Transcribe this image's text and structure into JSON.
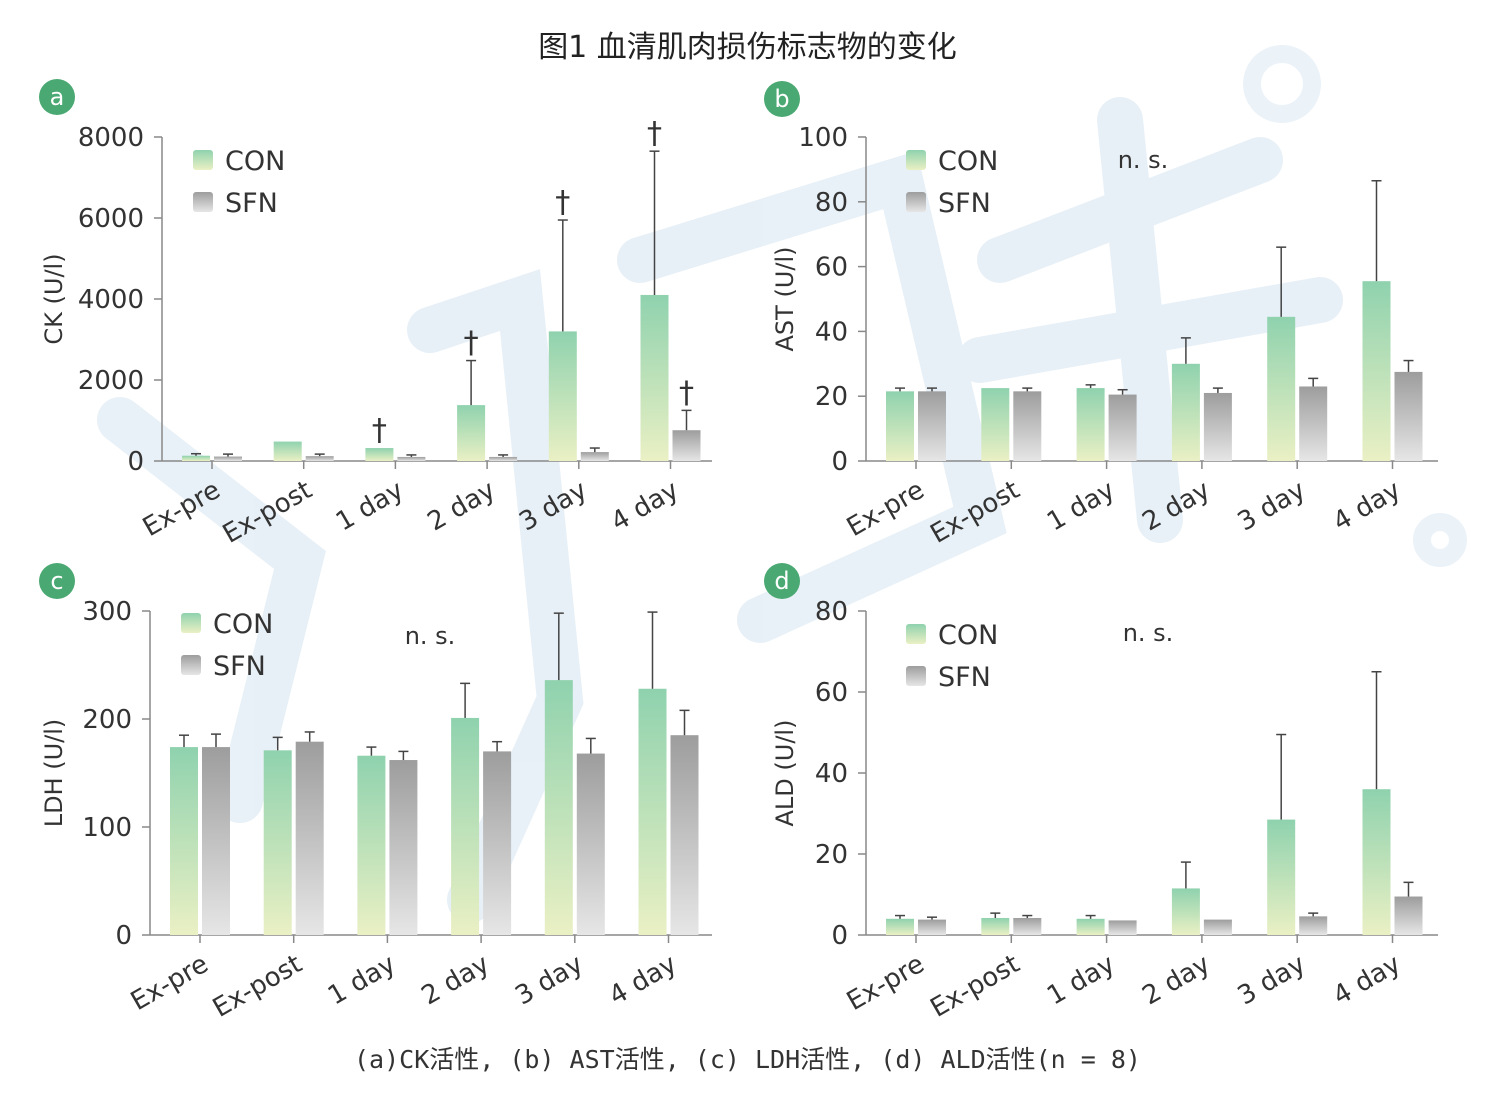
{
  "figure": {
    "title": "图1 血清肌肉损伤标志物的变化",
    "caption": "(a)CK活性, (b) AST活性, (c) LDH活性, (d) ALD活性(n = 8)"
  },
  "colors": {
    "con_top": "#8fd2ae",
    "con_bottom": "#eaf0c4",
    "sfn_top": "#9d9d9d",
    "sfn_bottom": "#e6e6e6",
    "badge": "#4aa872",
    "axis": "#888888",
    "errorbar": "#444444",
    "watermark": "#cfe0ee"
  },
  "chart_data": [
    {
      "type": "bar",
      "panel_label": "a",
      "categories": [
        "Ex-pre",
        "Ex-post",
        "1 day",
        "2 day",
        "3 day",
        "4 day"
      ],
      "ylabel": "CK (U/l)",
      "ylim": [
        0,
        8000
      ],
      "yticks": [
        0,
        2000,
        4000,
        6000,
        8000
      ],
      "legend": "top-left",
      "series": [
        {
          "name": "CON",
          "values": [
            130,
            480,
            320,
            1380,
            3200,
            4100
          ],
          "errors": [
            50,
            0,
            0,
            1100,
            2750,
            3550
          ]
        },
        {
          "name": "SFN",
          "values": [
            110,
            120,
            100,
            100,
            220,
            760
          ],
          "errors": [
            60,
            50,
            50,
            50,
            100,
            490
          ]
        }
      ],
      "markers": [
        {
          "category": "1 day",
          "series": "CON",
          "text": "†"
        },
        {
          "category": "2 day",
          "series": "CON",
          "text": "†"
        },
        {
          "category": "3 day",
          "series": "CON",
          "text": "†"
        },
        {
          "category": "4 day",
          "series": "CON",
          "text": "†"
        },
        {
          "category": "4 day",
          "series": "SFN",
          "text": "†"
        }
      ]
    },
    {
      "type": "bar",
      "panel_label": "b",
      "categories": [
        "Ex-pre",
        "Ex-post",
        "1 day",
        "2 day",
        "3 day",
        "4 day"
      ],
      "ylabel": "AST (U/l)",
      "ylim": [
        0,
        100
      ],
      "yticks": [
        0,
        20,
        40,
        60,
        80,
        100
      ],
      "legend": "top-left",
      "annotation": "n. s.",
      "series": [
        {
          "name": "CON",
          "values": [
            21.5,
            22.5,
            22.5,
            30,
            44.5,
            55.5
          ],
          "errors": [
            1,
            0,
            1,
            8,
            21.5,
            31
          ]
        },
        {
          "name": "SFN",
          "values": [
            21.5,
            21.5,
            20.5,
            21,
            23,
            27.5
          ],
          "errors": [
            1,
            1,
            1.5,
            1.5,
            2.5,
            3.5
          ]
        }
      ]
    },
    {
      "type": "bar",
      "panel_label": "c",
      "categories": [
        "Ex-pre",
        "Ex-post",
        "1 day",
        "2 day",
        "3 day",
        "4 day"
      ],
      "ylabel": "LDH (U/l)",
      "ylim": [
        0,
        300
      ],
      "yticks": [
        0,
        100,
        200,
        300
      ],
      "legend": "top-left",
      "annotation": "n. s.",
      "series": [
        {
          "name": "CON",
          "values": [
            174,
            171,
            166,
            201,
            236,
            228
          ],
          "errors": [
            11,
            12,
            8,
            32,
            62,
            71
          ]
        },
        {
          "name": "SFN",
          "values": [
            174,
            179,
            162,
            170,
            168,
            185
          ],
          "errors": [
            12,
            9,
            8,
            9,
            14,
            23
          ]
        }
      ]
    },
    {
      "type": "bar",
      "panel_label": "d",
      "categories": [
        "Ex-pre",
        "Ex-post",
        "1 day",
        "2 day",
        "3 day",
        "4 day"
      ],
      "ylabel": "ALD (U/l)",
      "ylim": [
        0,
        80
      ],
      "yticks": [
        0,
        20,
        40,
        60,
        80
      ],
      "legend": "top-left",
      "annotation": "n. s.",
      "series": [
        {
          "name": "CON",
          "values": [
            4,
            4.2,
            4,
            11.5,
            28.5,
            36
          ],
          "errors": [
            0.8,
            1.2,
            0.8,
            6.5,
            21,
            29
          ]
        },
        {
          "name": "SFN",
          "values": [
            3.8,
            4.2,
            3.6,
            3.8,
            4.6,
            9.5
          ],
          "errors": [
            0.6,
            0.6,
            0,
            0,
            0.8,
            3.5
          ]
        }
      ]
    }
  ]
}
